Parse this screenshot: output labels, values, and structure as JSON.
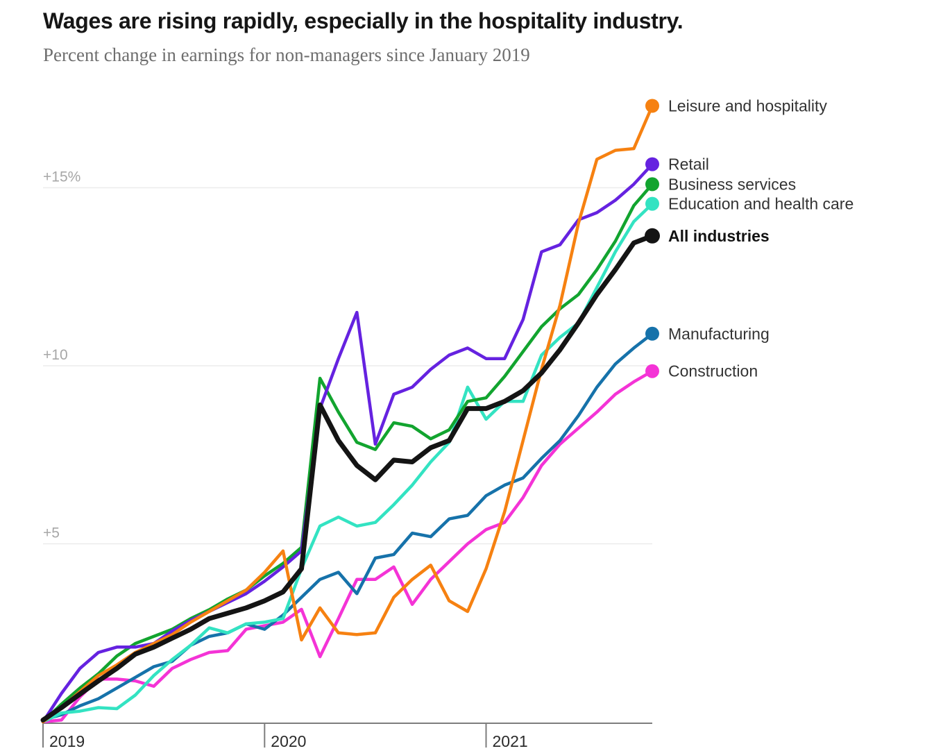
{
  "header": {
    "title": "Wages are rising rapidly, especially in the hospitality industry.",
    "subtitle": "Percent change in earnings for non-managers since January 2019"
  },
  "chart_data": {
    "type": "line",
    "title": "Wages are rising rapidly, especially in the hospitality industry.",
    "subtitle": "Percent change in earnings for non-managers since January 2019",
    "x_unit": "month",
    "x_range_note": "monthly, January 2019 through October 2021",
    "grid": true,
    "legend_position": "right-of-line-ends",
    "ylim": [
      0,
      17.5
    ],
    "axis_color": "#7d7d7d",
    "grid_color": "#ebebeb",
    "y_ticks": [
      {
        "value": 5,
        "label": "+5"
      },
      {
        "value": 10,
        "label": "+10"
      },
      {
        "value": 15,
        "label": "+15%"
      }
    ],
    "x_ticks": [
      {
        "index": 0,
        "label": "2019"
      },
      {
        "index": 12,
        "label": "2020"
      },
      {
        "index": 24,
        "label": "2021"
      }
    ],
    "categories": [
      "2019-01",
      "2019-02",
      "2019-03",
      "2019-04",
      "2019-05",
      "2019-06",
      "2019-07",
      "2019-08",
      "2019-09",
      "2019-10",
      "2019-11",
      "2019-12",
      "2020-01",
      "2020-02",
      "2020-03",
      "2020-04",
      "2020-05",
      "2020-06",
      "2020-07",
      "2020-08",
      "2020-09",
      "2020-10",
      "2020-11",
      "2020-12",
      "2021-01",
      "2021-02",
      "2021-03",
      "2021-04",
      "2021-05",
      "2021-06",
      "2021-07",
      "2021-08",
      "2021-09",
      "2021-10"
    ],
    "series": [
      {
        "id": "construction",
        "label": "Construction",
        "color": "#f433d6",
        "width": 4.5,
        "dot": 10,
        "bold": false,
        "values": [
          0,
          0.05,
          0.7,
          1.2,
          1.2,
          1.15,
          1.0,
          1.5,
          1.75,
          1.95,
          2.0,
          2.6,
          2.7,
          2.8,
          3.16,
          1.83,
          2.9,
          4.0,
          4.0,
          4.35,
          3.3,
          4.0,
          4.5,
          5.0,
          5.4,
          5.6,
          6.3,
          7.2,
          7.8,
          8.25,
          8.7,
          9.2,
          9.55,
          9.85
        ]
      },
      {
        "id": "manufacturing",
        "label": "Manufacturing",
        "color": "#1672aa",
        "width": 4.5,
        "dot": 10,
        "bold": false,
        "values": [
          0.05,
          0.2,
          0.45,
          0.65,
          0.95,
          1.25,
          1.55,
          1.7,
          2.15,
          2.4,
          2.5,
          2.75,
          2.6,
          3.0,
          3.5,
          4.0,
          4.2,
          3.6,
          4.6,
          4.7,
          5.3,
          5.2,
          5.7,
          5.8,
          6.35,
          6.65,
          6.85,
          7.4,
          7.9,
          8.6,
          9.4,
          10.05,
          10.5,
          10.9
        ]
      },
      {
        "id": "education-health",
        "label": "Education and health care",
        "color": "#33e3c2",
        "width": 4.5,
        "dot": 10,
        "bold": false,
        "values": [
          0,
          0.25,
          0.3,
          0.4,
          0.37,
          0.75,
          1.3,
          1.75,
          2.15,
          2.64,
          2.5,
          2.75,
          2.8,
          2.9,
          4.3,
          5.5,
          5.75,
          5.5,
          5.6,
          6.1,
          6.65,
          7.3,
          7.85,
          9.4,
          8.5,
          9.0,
          9.0,
          10.3,
          10.8,
          11.2,
          12.2,
          13.2,
          14.05,
          14.55
        ]
      },
      {
        "id": "business-services",
        "label": "Business services",
        "color": "#12a42f",
        "width": 4.5,
        "dot": 10,
        "bold": false,
        "values": [
          0,
          0.5,
          0.95,
          1.35,
          1.85,
          2.2,
          2.4,
          2.6,
          2.9,
          3.15,
          3.45,
          3.7,
          4.1,
          4.45,
          4.9,
          9.65,
          8.7,
          7.85,
          7.65,
          8.4,
          8.3,
          7.95,
          8.2,
          9.0,
          9.1,
          9.7,
          10.4,
          11.1,
          11.6,
          12.0,
          12.7,
          13.5,
          14.5,
          15.1
        ]
      },
      {
        "id": "retail",
        "label": "Retail",
        "color": "#6522e0",
        "width": 4.5,
        "dot": 10,
        "bold": false,
        "values": [
          0,
          0.8,
          1.5,
          1.95,
          2.1,
          2.1,
          2.2,
          2.55,
          2.85,
          3.1,
          3.35,
          3.6,
          3.95,
          4.35,
          4.8,
          8.8,
          10.2,
          11.5,
          7.8,
          9.2,
          9.4,
          9.9,
          10.3,
          10.5,
          10.2,
          10.2,
          11.3,
          13.2,
          13.4,
          14.1,
          14.3,
          14.65,
          15.1,
          15.66
        ]
      },
      {
        "id": "leisure-hospitality",
        "label": "Leisure and hospitality",
        "color": "#f68111",
        "width": 4.5,
        "dot": 10,
        "bold": false,
        "values": [
          0,
          0.4,
          0.85,
          1.3,
          1.6,
          1.95,
          2.2,
          2.45,
          2.8,
          3.1,
          3.4,
          3.7,
          4.2,
          4.8,
          2.3,
          3.2,
          2.5,
          2.45,
          2.5,
          3.5,
          4.0,
          4.4,
          3.4,
          3.1,
          4.3,
          5.9,
          7.9,
          9.9,
          11.7,
          14.0,
          15.8,
          16.05,
          16.1,
          17.3
        ]
      },
      {
        "id": "all-industries",
        "label": "All industries",
        "color": "#141414",
        "width": 7,
        "dot": 11,
        "bold": true,
        "values": [
          0.05,
          0.4,
          0.78,
          1.15,
          1.5,
          1.9,
          2.1,
          2.35,
          2.6,
          2.9,
          3.05,
          3.2,
          3.4,
          3.65,
          4.3,
          8.9,
          7.9,
          7.2,
          6.8,
          7.35,
          7.3,
          7.7,
          7.9,
          8.8,
          8.8,
          9.0,
          9.3,
          9.8,
          10.45,
          11.2,
          12.0,
          12.7,
          13.45,
          13.65
        ]
      }
    ]
  }
}
